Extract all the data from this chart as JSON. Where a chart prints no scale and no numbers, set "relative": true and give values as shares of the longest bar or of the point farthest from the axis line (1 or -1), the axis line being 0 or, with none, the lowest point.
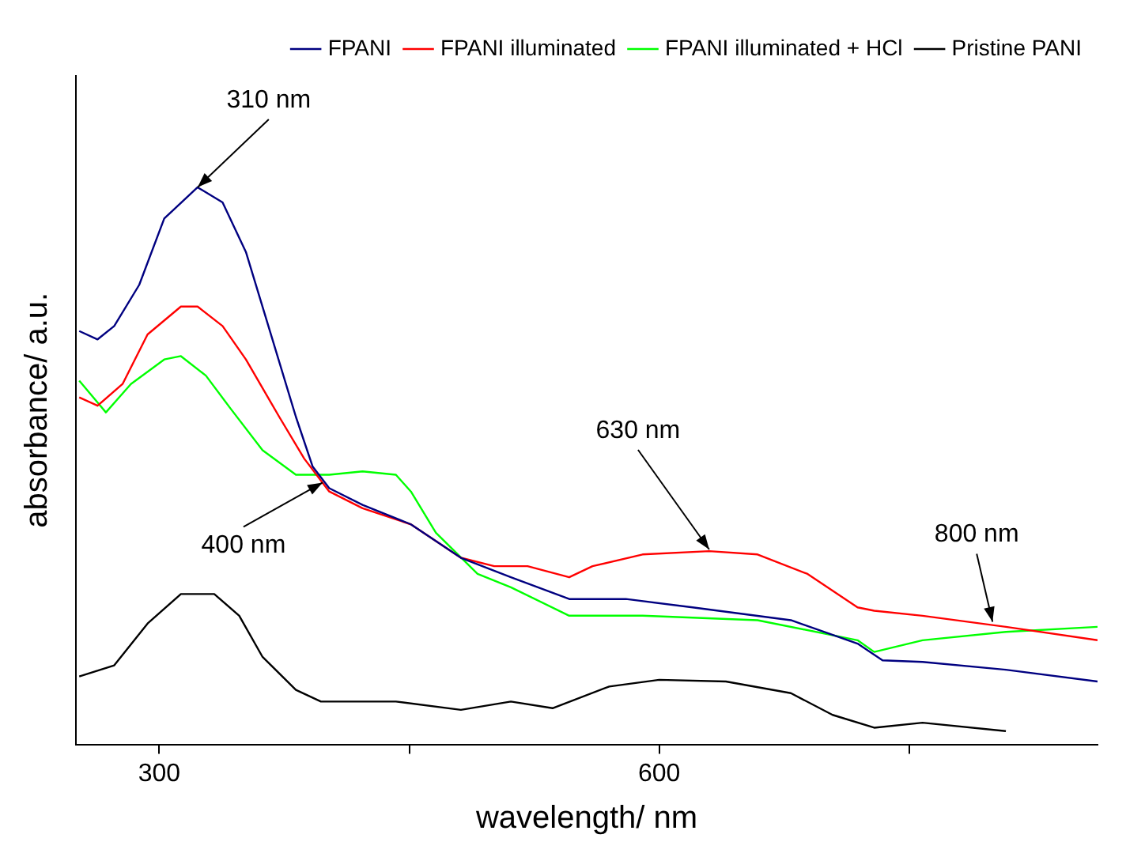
{
  "chart_data": {
    "type": "line",
    "xlabel": "wavelength/ nm",
    "ylabel": "absorbance/ a.u.",
    "relative": true,
    "xlim": [
      250,
      863
    ],
    "xticks": [
      300,
      {
        "value": 450,
        "label": null
      },
      600,
      {
        "value": 750,
        "label": null
      }
    ],
    "legend": "top right",
    "marker": "none",
    "line_style": "solid",
    "series": [
      {
        "name": "FPANI",
        "color": "#000080",
        "x": [
          252,
          263,
          273,
          288,
          303,
          323,
          338,
          352,
          367,
          382,
          392,
          402,
          422,
          451,
          481,
          511,
          546,
          580,
          620,
          679,
          719,
          734,
          758,
          808,
          863
        ],
        "values": [
          0.742,
          0.727,
          0.751,
          0.825,
          0.944,
          1.0,
          0.973,
          0.884,
          0.736,
          0.588,
          0.499,
          0.46,
          0.43,
          0.395,
          0.335,
          0.3,
          0.261,
          0.261,
          0.246,
          0.223,
          0.181,
          0.151,
          0.148,
          0.134,
          0.113
        ]
      },
      {
        "name": "FPANI illuminated",
        "color": "#ff0000",
        "x": [
          252,
          263,
          278,
          293,
          313,
          323,
          338,
          352,
          372,
          387,
          402,
          422,
          451,
          481,
          501,
          521,
          546,
          560,
          590,
          630,
          659,
          689,
          719,
          729,
          758,
          808,
          863
        ],
        "values": [
          0.623,
          0.608,
          0.647,
          0.736,
          0.786,
          0.786,
          0.751,
          0.691,
          0.588,
          0.513,
          0.454,
          0.424,
          0.395,
          0.335,
          0.32,
          0.32,
          0.3,
          0.32,
          0.341,
          0.347,
          0.341,
          0.306,
          0.246,
          0.24,
          0.231,
          0.211,
          0.187
        ]
      },
      {
        "name": "FPANI illuminated + HCl",
        "color": "#00ff00",
        "x": [
          252,
          268,
          283,
          303,
          313,
          328,
          343,
          362,
          382,
          402,
          422,
          442,
          451,
          466,
          491,
          511,
          546,
          590,
          659,
          719,
          729,
          758,
          808,
          863
        ],
        "values": [
          0.653,
          0.596,
          0.647,
          0.691,
          0.697,
          0.662,
          0.602,
          0.528,
          0.484,
          0.484,
          0.49,
          0.484,
          0.454,
          0.38,
          0.306,
          0.282,
          0.231,
          0.231,
          0.223,
          0.187,
          0.166,
          0.187,
          0.202,
          0.211
        ]
      },
      {
        "name": "Pristine PANI",
        "color": "#000000",
        "x": [
          252,
          273,
          293,
          313,
          333,
          348,
          362,
          382,
          397,
          442,
          481,
          511,
          536,
          570,
          600,
          640,
          679,
          704,
          729,
          758,
          808
        ],
        "values": [
          0.122,
          0.142,
          0.217,
          0.27,
          0.27,
          0.231,
          0.157,
          0.098,
          0.077,
          0.077,
          0.062,
          0.077,
          0.065,
          0.104,
          0.116,
          0.113,
          0.092,
          0.053,
          0.03,
          0.039,
          0.024
        ]
      }
    ],
    "annotations": [
      {
        "text": "310 nm",
        "x": 323,
        "y": 1.0
      },
      {
        "text": "400 nm",
        "x": 398,
        "y": 0.47
      },
      {
        "text": "630 nm",
        "x": 630,
        "y": 0.35
      },
      {
        "text": "800 nm",
        "x": 800,
        "y": 0.22
      }
    ]
  }
}
